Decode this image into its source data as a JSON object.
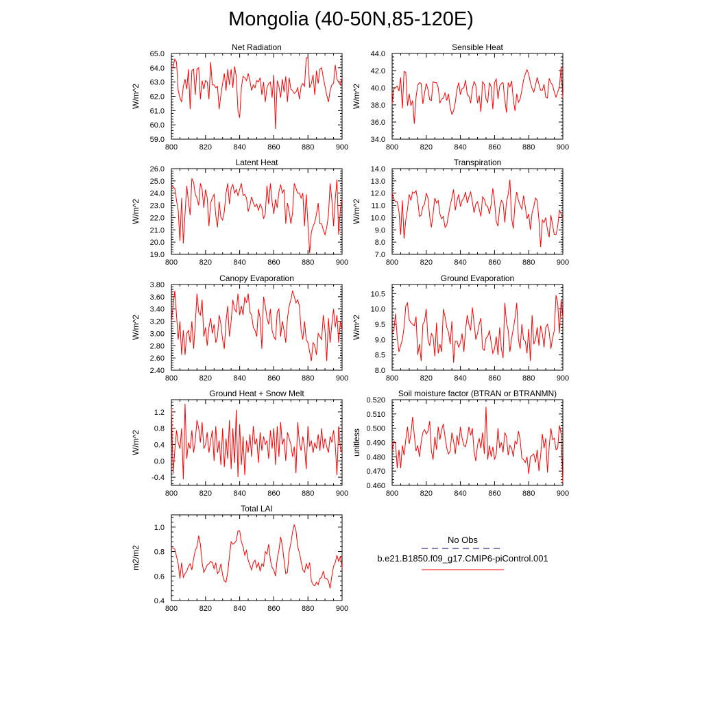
{
  "title": "Mongolia (40-50N,85-120E)",
  "colors": {
    "series": "#ff0000",
    "obs": "#000080",
    "axis": "#000000"
  },
  "legend": {
    "obs_label": "No Obs",
    "model_label": "b.e21.B1850.f09_g17.CMIP6-piControl.001"
  },
  "chart_data": [
    {
      "type": "line",
      "title": "Net Radiation",
      "ylabel": "W/m^2",
      "xlim": [
        800,
        900
      ],
      "ylim": [
        59.0,
        65.0
      ],
      "xticks": [
        800,
        820,
        840,
        860,
        880,
        900
      ],
      "xtick_labels": [
        "800",
        "820",
        "840",
        "860",
        "880",
        "900"
      ],
      "yticks": [
        59.0,
        60.0,
        61.0,
        62.0,
        63.0,
        64.0,
        65.0
      ],
      "ytick_labels": [
        "59.0",
        "60.0",
        "61.0",
        "62.0",
        "63.0",
        "64.0",
        "65.0"
      ],
      "x_start": 800,
      "x_step": 1,
      "values": [
        63.9,
        64.1,
        64.6,
        64.4,
        62.4,
        61.9,
        61.6,
        62.7,
        63.2,
        62.5,
        63.9,
        61.1,
        63.8,
        63.9,
        62.1,
        63.9,
        64.0,
        61.8,
        63.1,
        62.5,
        63.1,
        63.0,
        61.8,
        64.4,
        62.8,
        62.8,
        62.6,
        62.7,
        61.1,
        62.1,
        62.9,
        63.6,
        62.4,
        63.9,
        62.8,
        63.9,
        62.6,
        64.1,
        63.4,
        61.0,
        60.5,
        62.6,
        63.4,
        63.3,
        63.1,
        63.6,
        63.1,
        62.4,
        62.8,
        62.6,
        63.1,
        63.0,
        63.3,
        62.1,
        63.0,
        61.6,
        62.6,
        62.9,
        63.0,
        61.9,
        63.5,
        59.7,
        63.1,
        62.7,
        61.9,
        63.2,
        62.3,
        63.4,
        61.6,
        63.3,
        62.5,
        62.4,
        62.2,
        62.3,
        62.6,
        61.8,
        62.7,
        62.9,
        62.7,
        64.7,
        64.7,
        62.6,
        62.9,
        63.5,
        62.1,
        63.8,
        62.9,
        63.9,
        64.0,
        63.3,
        62.7,
        62.1,
        61.6,
        62.4,
        62.8,
        62.9,
        64.2,
        63.2,
        63.0,
        62.8,
        63.3
      ]
    },
    {
      "type": "line",
      "title": "Sensible Heat",
      "ylabel": "W/m^2",
      "xlim": [
        800,
        900
      ],
      "ylim": [
        34.0,
        44.0
      ],
      "xticks": [
        800,
        820,
        840,
        860,
        880,
        900
      ],
      "xtick_labels": [
        "800",
        "820",
        "840",
        "860",
        "880",
        "900"
      ],
      "yticks": [
        34.0,
        36.0,
        38.0,
        40.0,
        42.0,
        44.0
      ],
      "ytick_labels": [
        "34.0",
        "36.0",
        "38.0",
        "40.0",
        "42.0",
        "44.0"
      ],
      "x_start": 800,
      "x_step": 1,
      "values": [
        38.1,
        39.9,
        40.0,
        40.2,
        39.6,
        41.2,
        37.6,
        41.9,
        41.8,
        37.9,
        39.3,
        37.9,
        38.5,
        35.8,
        38.9,
        40.3,
        40.6,
        40.5,
        38.1,
        39.4,
        40.5,
        39.8,
        38.6,
        38.5,
        40.7,
        40.6,
        40.6,
        40.0,
        38.2,
        38.7,
        38.8,
        39.4,
        38.5,
        39.3,
        37.7,
        36.9,
        37.3,
        38.3,
        39.8,
        40.6,
        39.2,
        39.9,
        40.0,
        40.9,
        39.2,
        39.0,
        38.2,
        39.9,
        40.7,
        40.3,
        38.2,
        39.1,
        37.2,
        40.7,
        40.4,
        38.7,
        38.3,
        40.6,
        40.1,
        37.5,
        40.6,
        41.0,
        38.7,
        40.2,
        40.5,
        40.6,
        38.6,
        37.1,
        40.6,
        40.1,
        40.8,
        38.6,
        37.3,
        39.3,
        38.3,
        38.7,
        39.7,
        40.9,
        41.6,
        42.1,
        41.6,
        40.6,
        39.9,
        39.5,
        40.3,
        41.2,
        40.4,
        39.7,
        39.7,
        40.4,
        38.9,
        38.8,
        41.1,
        40.6,
        40.3,
        39.5,
        38.9,
        39.5,
        40.1,
        42.5,
        38.8
      ]
    },
    {
      "type": "line",
      "title": "Latent Heat",
      "ylabel": "W/m^2",
      "xlim": [
        800,
        900
      ],
      "ylim": [
        19.0,
        26.0
      ],
      "xticks": [
        800,
        820,
        840,
        860,
        880,
        900
      ],
      "xtick_labels": [
        "800",
        "820",
        "840",
        "860",
        "880",
        "900"
      ],
      "yticks": [
        19.0,
        20.0,
        21.0,
        22.0,
        23.0,
        24.0,
        25.0,
        26.0
      ],
      "ytick_labels": [
        "19.0",
        "20.0",
        "21.0",
        "22.0",
        "23.0",
        "24.0",
        "25.0",
        "26.0"
      ],
      "x_start": 800,
      "x_step": 1,
      "values": [
        24.5,
        24.5,
        24.4,
        23.4,
        22.6,
        20.1,
        23.6,
        19.9,
        22.3,
        24.6,
        23.3,
        22.2,
        25.2,
        24.9,
        23.9,
        23.6,
        23.0,
        24.8,
        24.3,
        22.8,
        24.3,
        23.6,
        21.3,
        23.2,
        23.6,
        23.9,
        22.2,
        21.2,
        23.3,
        22.0,
        21.8,
        22.5,
        24.0,
        24.8,
        23.1,
        24.4,
        24.7,
        24.0,
        24.3,
        23.8,
        24.3,
        24.8,
        23.8,
        23.9,
        23.6,
        22.5,
        23.0,
        23.7,
        23.2,
        22.9,
        23.1,
        22.6,
        23.1,
        22.8,
        21.9,
        22.3,
        24.6,
        23.1,
        24.8,
        23.3,
        22.3,
        23.5,
        22.8,
        24.1,
        24.7,
        24.0,
        24.3,
        21.5,
        23.2,
        22.5,
        21.5,
        22.4,
        24.8,
        24.4,
        24.0,
        24.0,
        23.6,
        24.0,
        21.3,
        23.9,
        21.5,
        19.1,
        20.8,
        21.3,
        21.6,
        22.3,
        23.2,
        21.5,
        21.5,
        21.0,
        20.6,
        21.2,
        22.2,
        24.8,
        23.5,
        21.3,
        23.5,
        25.1,
        20.6,
        22.7,
        23.4
      ]
    },
    {
      "type": "line",
      "title": "Transpiration",
      "ylabel": "W/m^2",
      "xlim": [
        800,
        900
      ],
      "ylim": [
        7.0,
        14.0
      ],
      "xticks": [
        800,
        820,
        840,
        860,
        880,
        900
      ],
      "xtick_labels": [
        "800",
        "820",
        "840",
        "860",
        "880",
        "900"
      ],
      "yticks": [
        7.0,
        8.0,
        9.0,
        10.0,
        11.0,
        12.0,
        13.0,
        14.0
      ],
      "ytick_labels": [
        "7.0",
        "8.0",
        "9.0",
        "10.0",
        "11.0",
        "12.0",
        "13.0",
        "14.0"
      ],
      "x_start": 800,
      "x_step": 1,
      "values": [
        12.0,
        11.5,
        11.3,
        11.3,
        10.5,
        8.6,
        11.4,
        8.3,
        9.8,
        10.7,
        11.9,
        11.4,
        12.1,
        12.0,
        12.2,
        11.4,
        10.1,
        10.2,
        10.9,
        11.1,
        12.0,
        11.6,
        10.1,
        9.2,
        10.3,
        11.6,
        11.2,
        11.4,
        10.3,
        9.9,
        10.1,
        9.2,
        9.4,
        10.2,
        11.0,
        11.6,
        12.3,
        10.6,
        11.4,
        11.9,
        10.9,
        11.4,
        11.6,
        12.1,
        11.2,
        11.7,
        12.1,
        11.3,
        10.4,
        11.1,
        11.3,
        10.7,
        10.1,
        11.7,
        11.5,
        11.0,
        10.9,
        10.3,
        11.1,
        12.4,
        11.3,
        9.7,
        9.3,
        10.8,
        11.4,
        11.2,
        9.6,
        11.3,
        11.9,
        13.1,
        9.9,
        9.1,
        11.2,
        12.1,
        11.4,
        11.0,
        10.7,
        11.8,
        10.9,
        9.9,
        10.3,
        9.0,
        10.4,
        10.9,
        11.6,
        11.4,
        9.8,
        7.6,
        9.8,
        9.6,
        10.0,
        9.0,
        8.4,
        10.2,
        9.4,
        8.6,
        8.6,
        9.3,
        10.6,
        10.3,
        9.9
      ]
    },
    {
      "type": "line",
      "title": "Canopy Evaporation",
      "ylabel": "W/m^2",
      "xlim": [
        800,
        900
      ],
      "ylim": [
        2.4,
        3.8
      ],
      "xticks": [
        800,
        820,
        840,
        860,
        880,
        900
      ],
      "xtick_labels": [
        "800",
        "820",
        "840",
        "860",
        "880",
        "900"
      ],
      "yticks": [
        2.4,
        2.6,
        2.8,
        3.0,
        3.2,
        3.4,
        3.6,
        3.8
      ],
      "ytick_labels": [
        "2.40",
        "2.60",
        "2.80",
        "3.00",
        "3.20",
        "3.40",
        "3.60",
        "3.80"
      ],
      "x_start": 800,
      "x_step": 1,
      "values": [
        3.2,
        3.45,
        3.7,
        3.3,
        2.9,
        3.2,
        2.65,
        3.05,
        2.65,
        3.0,
        3.05,
        2.85,
        3.2,
        2.75,
        3.15,
        3.65,
        3.35,
        3.3,
        3.55,
        2.95,
        3.1,
        2.8,
        3.1,
        3.25,
        3.0,
        3.15,
        2.85,
        2.95,
        3.3,
        3.15,
        2.9,
        2.75,
        3.2,
        3.45,
        2.95,
        3.2,
        3.55,
        3.4,
        3.35,
        3.65,
        3.3,
        3.45,
        3.3,
        3.6,
        3.5,
        3.65,
        3.35,
        3.3,
        3.1,
        3.05,
        2.95,
        3.4,
        3.25,
        2.75,
        3.6,
        3.45,
        3.25,
        3.15,
        3.4,
        3.05,
        2.95,
        2.9,
        3.35,
        3.4,
        2.95,
        3.2,
        3.05,
        2.85,
        3.25,
        3.45,
        3.55,
        3.7,
        3.6,
        3.5,
        3.55,
        3.45,
        3.05,
        2.9,
        3.2,
        2.9,
        2.85,
        2.7,
        2.55,
        2.85,
        2.8,
        2.65,
        3.0,
        2.95,
        2.9,
        3.3,
        3.05,
        2.55,
        3.25,
        2.85,
        3.15,
        3.4,
        3.1,
        3.3,
        2.85,
        3.2,
        3.05
      ]
    },
    {
      "type": "line",
      "title": "Ground Evaporation",
      "ylabel": "W/m^2",
      "xlim": [
        800,
        900
      ],
      "ylim": [
        8.0,
        10.8
      ],
      "xticks": [
        800,
        820,
        840,
        860,
        880,
        900
      ],
      "xtick_labels": [
        "800",
        "820",
        "840",
        "860",
        "880",
        "900"
      ],
      "yticks": [
        8.0,
        8.5,
        9.0,
        9.5,
        10.0,
        10.5
      ],
      "ytick_labels": [
        "8.0",
        "8.5",
        "9.0",
        "9.5",
        "10.0",
        "10.5"
      ],
      "x_start": 800,
      "x_step": 1,
      "values": [
        9.25,
        9.3,
        9.85,
        9.05,
        8.6,
        8.8,
        9.0,
        9.4,
        10.1,
        10.2,
        9.65,
        9.55,
        9.5,
        9.45,
        9.75,
        8.5,
        8.85,
        8.3,
        9.5,
        9.6,
        10.0,
        9.0,
        8.8,
        9.2,
        9.1,
        8.45,
        9.55,
        8.55,
        8.85,
        8.6,
        10.0,
        9.75,
        9.4,
        9.25,
        8.85,
        9.6,
        8.25,
        8.95,
        8.95,
        8.75,
        8.9,
        9.2,
        8.6,
        9.3,
        9.8,
        9.5,
        9.3,
        10.05,
        9.55,
        9.0,
        9.2,
        9.5,
        9.7,
        8.7,
        8.65,
        9.05,
        9.1,
        9.3,
        8.9,
        8.55,
        8.7,
        9.1,
        8.5,
        9.4,
        8.7,
        8.4,
        10.2,
        9.55,
        9.3,
        8.6,
        9.05,
        9.35,
        9.7,
        10.2,
        9.0,
        8.7,
        9.5,
        9.0,
        8.95,
        8.55,
        9.35,
        8.3,
        9.8,
        8.85,
        9.0,
        9.4,
        8.8,
        9.45,
        9.2,
        8.75,
        9.4,
        9.5,
        9.25,
        8.7,
        9.05,
        9.3,
        10.45,
        10.2,
        9.2,
        10.3,
        9.7
      ]
    },
    {
      "type": "line",
      "title": "Ground Heat + Snow Melt",
      "ylabel": "W/m^2",
      "xlim": [
        800,
        900
      ],
      "ylim": [
        -0.6,
        1.5
      ],
      "xticks": [
        800,
        820,
        840,
        860,
        880,
        900
      ],
      "xtick_labels": [
        "800",
        "820",
        "840",
        "860",
        "880",
        "900"
      ],
      "yticks": [
        -0.4,
        0.0,
        0.4,
        0.8,
        1.2
      ],
      "ytick_labels": [
        "-0.4",
        "0.0",
        "0.4",
        "0.8",
        "1.2"
      ],
      "x_start": 800,
      "x_step": 1,
      "values": [
        1.3,
        -0.3,
        0.25,
        0.75,
        0.45,
        0.3,
        0.8,
        -0.45,
        1.4,
        0.05,
        0.45,
        0.3,
        0.75,
        0.2,
        0.5,
        1.0,
        0.8,
        0.45,
        0.95,
        0.3,
        0.4,
        0.7,
        0.2,
        0.5,
        0.75,
        0.0,
        0.85,
        0.2,
        0.5,
        -0.1,
        0.8,
        -0.15,
        0.55,
        0.05,
        1.0,
        -0.2,
        0.8,
        -0.05,
        1.25,
        -0.4,
        0.9,
        -0.1,
        0.6,
        -0.35,
        0.5,
        0.2,
        0.65,
        0.1,
        0.85,
        0.4,
        0.55,
        -0.05,
        0.7,
        0.25,
        0.6,
        0.4,
        0.5,
        0.05,
        0.75,
        0.3,
        0.8,
        -0.1,
        0.85,
        0.1,
        0.95,
        0.4,
        0.55,
        0.0,
        0.7,
        0.55,
        0.4,
        0.1,
        0.35,
        -0.3,
        0.95,
        0.45,
        0.25,
        0.6,
        0.35,
        -0.2,
        0.85,
        0.35,
        0.5,
        0.2,
        0.45,
        0.3,
        0.65,
        0.25,
        0.8,
        0.3,
        0.55,
        0.35,
        0.2,
        0.6,
        0.45,
        0.75,
        0.4,
        -0.35,
        0.85,
        0.3,
        0.2
      ]
    },
    {
      "type": "line",
      "title": "Soil moisture factor (BTRAN or BTRANMN)",
      "ylabel": "unitless",
      "xlim": [
        800,
        900
      ],
      "ylim": [
        0.46,
        0.52
      ],
      "xticks": [
        800,
        820,
        840,
        860,
        880,
        900
      ],
      "xtick_labels": [
        "800",
        "820",
        "840",
        "860",
        "880",
        "900"
      ],
      "yticks": [
        0.46,
        0.47,
        0.48,
        0.49,
        0.5,
        0.51,
        0.52
      ],
      "ytick_labels": [
        "0.460",
        "0.470",
        "0.480",
        "0.490",
        "0.500",
        "0.510",
        "0.520"
      ],
      "x_start": 800,
      "x_step": 1,
      "values": [
        0.484,
        0.491,
        0.489,
        0.472,
        0.485,
        0.472,
        0.488,
        0.481,
        0.492,
        0.501,
        0.489,
        0.496,
        0.508,
        0.495,
        0.484,
        0.488,
        0.48,
        0.49,
        0.497,
        0.499,
        0.496,
        0.498,
        0.505,
        0.484,
        0.478,
        0.494,
        0.485,
        0.501,
        0.492,
        0.499,
        0.503,
        0.494,
        0.486,
        0.482,
        0.484,
        0.497,
        0.491,
        0.482,
        0.495,
        0.488,
        0.501,
        0.493,
        0.488,
        0.487,
        0.493,
        0.501,
        0.495,
        0.5,
        0.484,
        0.477,
        0.488,
        0.493,
        0.486,
        0.497,
        0.482,
        0.515,
        0.478,
        0.488,
        0.48,
        0.487,
        0.478,
        0.482,
        0.5,
        0.486,
        0.49,
        0.483,
        0.497,
        0.494,
        0.481,
        0.488,
        0.486,
        0.48,
        0.491,
        0.489,
        0.498,
        0.492,
        0.479,
        0.478,
        0.476,
        0.48,
        0.468,
        0.48,
        0.481,
        0.482,
        0.476,
        0.485,
        0.47,
        0.481,
        0.496,
        0.486,
        0.493,
        0.469,
        0.487,
        0.5,
        0.492,
        0.493,
        0.485,
        0.486,
        0.502,
        0.496,
        0.462
      ]
    },
    {
      "type": "line",
      "title": "Total LAI",
      "ylabel": "m2/m2",
      "xlim": [
        800,
        900
      ],
      "ylim": [
        0.4,
        1.1
      ],
      "xticks": [
        800,
        820,
        840,
        860,
        880,
        900
      ],
      "xtick_labels": [
        "800",
        "820",
        "840",
        "860",
        "880",
        "900"
      ],
      "yticks": [
        0.4,
        0.6,
        0.8,
        1.0
      ],
      "ytick_labels": [
        "0.4",
        "0.6",
        "0.8",
        "1.0"
      ],
      "x_start": 800,
      "x_step": 1,
      "values": [
        0.83,
        0.83,
        0.82,
        0.76,
        0.7,
        0.58,
        0.71,
        0.59,
        0.62,
        0.64,
        0.68,
        0.7,
        0.65,
        0.74,
        0.81,
        0.84,
        0.93,
        0.86,
        0.71,
        0.63,
        0.66,
        0.69,
        0.7,
        0.72,
        0.71,
        0.66,
        0.71,
        0.62,
        0.64,
        0.7,
        0.61,
        0.56,
        0.55,
        0.63,
        0.76,
        0.88,
        0.86,
        0.87,
        0.89,
        0.97,
        0.97,
        0.88,
        0.84,
        0.77,
        0.81,
        0.73,
        0.69,
        0.65,
        0.71,
        0.73,
        0.67,
        0.71,
        0.64,
        0.7,
        0.68,
        0.8,
        0.78,
        0.86,
        0.73,
        0.67,
        0.65,
        0.6,
        0.74,
        0.81,
        0.92,
        0.85,
        0.73,
        0.62,
        0.63,
        0.8,
        0.87,
        0.96,
        1.02,
        0.97,
        0.84,
        0.79,
        0.72,
        0.65,
        0.63,
        0.7,
        0.66,
        0.71,
        0.56,
        0.53,
        0.52,
        0.55,
        0.53,
        0.58,
        0.59,
        0.64,
        0.58,
        0.58,
        0.56,
        0.5,
        0.6,
        0.68,
        0.71,
        0.77,
        0.72,
        0.76,
        0.67
      ]
    }
  ]
}
